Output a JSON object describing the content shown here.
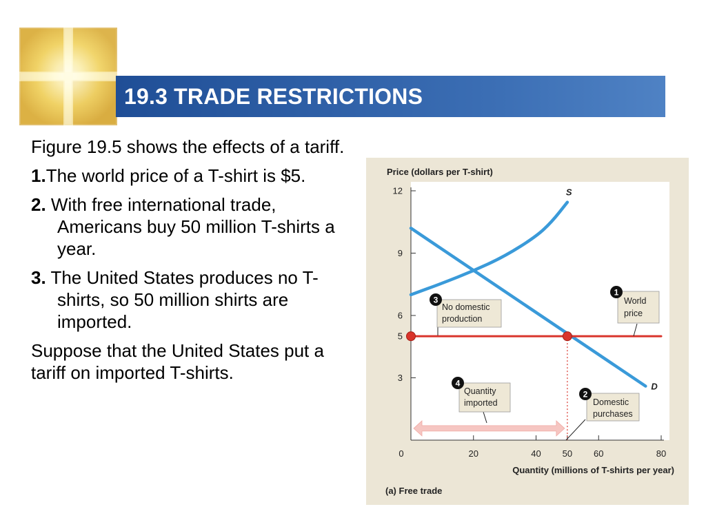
{
  "slide": {
    "title": "19.3 TRADE RESTRICTIONS",
    "intro": "Figure 19.5 shows the effects of a tariff.",
    "points": [
      {
        "num": "1.",
        "text": "The world price of a T-shirt is $5."
      },
      {
        "num": "2.",
        "text": " With free international trade, Americans buy 50 million T-shirts a year."
      },
      {
        "num": "3.",
        "text": " The United States produces no T-shirts, so 50 million shirts are imported."
      }
    ],
    "outro": "Suppose that the United States put a tariff on imported T-shirts."
  },
  "chart_data": {
    "type": "line",
    "ylabel": "Price (dollars per T-shirt)",
    "xlabel": "Quantity (millions of T-shirts per year)",
    "caption": "(a) Free trade",
    "xlim": [
      0,
      80
    ],
    "ylim": [
      0,
      12
    ],
    "x_ticks": [
      "0",
      "20",
      "40",
      "50",
      "60",
      "80"
    ],
    "y_ticks": [
      "3",
      "5",
      "6",
      "9",
      "12"
    ],
    "highlight_color": "#d9342b",
    "series": [
      {
        "name": "S",
        "color": "#3a9ad9",
        "points": [
          [
            0,
            7.0
          ],
          [
            10,
            7.55
          ],
          [
            20,
            8.15
          ],
          [
            30,
            8.85
          ],
          [
            40,
            9.8
          ],
          [
            45,
            10.5
          ],
          [
            50,
            11.45
          ]
        ]
      },
      {
        "name": "D",
        "color": "#3a9ad9",
        "points": [
          [
            0,
            10.2
          ],
          [
            75,
            2.6
          ]
        ]
      },
      {
        "name": "World price",
        "color": "#d9342b",
        "points": [
          [
            0,
            5
          ],
          [
            80,
            5
          ]
        ]
      }
    ],
    "markers": [
      [
        0,
        5
      ],
      [
        50,
        5
      ]
    ],
    "import_range": [
      0,
      50
    ],
    "import_y": 0.6,
    "callouts": [
      {
        "num": "1",
        "lines": [
          "World",
          "price"
        ]
      },
      {
        "num": "2",
        "lines": [
          "Domestic",
          "purchases"
        ]
      },
      {
        "num": "3",
        "lines": [
          "No domestic",
          "production"
        ]
      },
      {
        "num": "4",
        "lines": [
          "Quantity",
          "imported"
        ]
      }
    ]
  }
}
